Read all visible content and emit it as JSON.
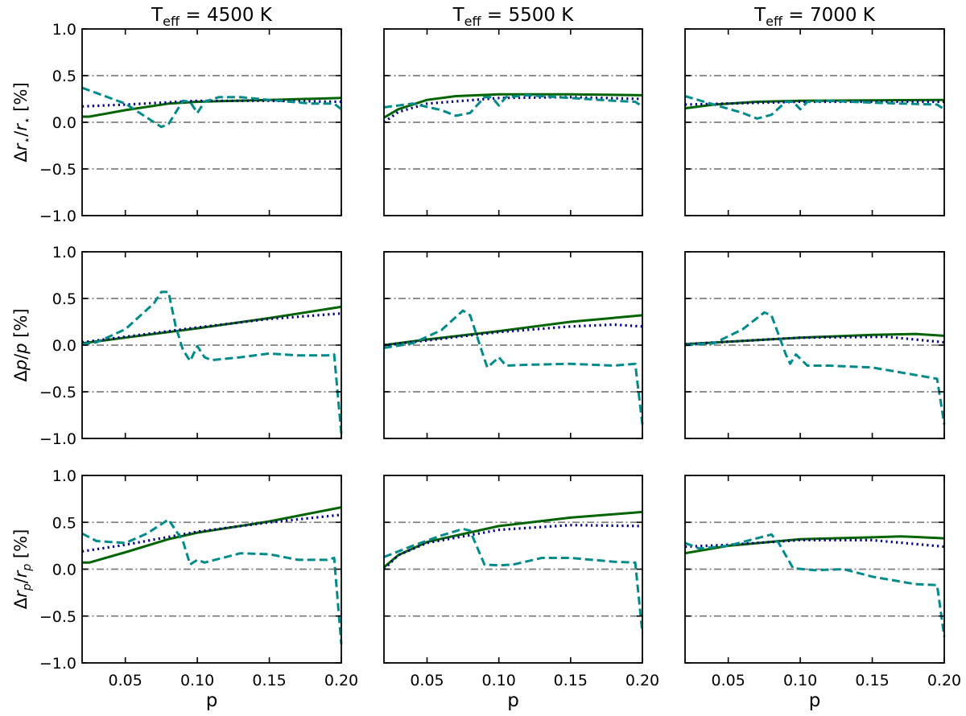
{
  "chart_data": {
    "type": "line",
    "layout": "3x3 grid",
    "xlim": [
      0.02,
      0.2
    ],
    "ylim": [
      -1.0,
      1.0
    ],
    "xticks": [
      "0.05",
      "0.10",
      "0.15",
      "0.20"
    ],
    "yticks": [
      "1.0",
      "0.5",
      "0.0",
      "−0.5",
      "−1.0"
    ],
    "reference_lines": [
      0.5,
      0.0,
      -0.5
    ],
    "xlabel": "p",
    "column_titles": [
      {
        "main": "T",
        "sub": "eff",
        "rest": " = 4500 K"
      },
      {
        "main": "T",
        "sub": "eff",
        "rest": " = 5500 K"
      },
      {
        "main": "T",
        "sub": "eff",
        "rest": " = 7000 K"
      }
    ],
    "row_ylabels": [
      {
        "pre": "Δ",
        "a": "r",
        "as": "⋆",
        "slash": "/",
        "b": "r",
        "bs": "⋆",
        "post": " [%]"
      },
      {
        "pre": "Δ",
        "a": "p",
        "as": "",
        "slash": "/",
        "b": "p",
        "bs": "",
        "post": " [%]"
      },
      {
        "pre": "Δ",
        "a": "r",
        "as": "p",
        "slash": "/",
        "b": "r",
        "bs": "p",
        "post": " [%]"
      }
    ],
    "series_styles": [
      {
        "style": "solid",
        "color": "#006400"
      },
      {
        "style": "dotted",
        "color": "#00008b"
      },
      {
        "style": "dashed",
        "color": "#008b8b"
      }
    ],
    "reference_color": "#808080",
    "panels": [
      {
        "row": 0,
        "col": 0,
        "series": [
          {
            "x": [
              0.02,
              0.025,
              0.05,
              0.08,
              0.1,
              0.15,
              0.2
            ],
            "y": [
              0.06,
              0.06,
              0.13,
              0.2,
              0.22,
              0.24,
              0.26
            ]
          },
          {
            "x": [
              0.02,
              0.05,
              0.1,
              0.15,
              0.2
            ],
            "y": [
              0.17,
              0.19,
              0.23,
              0.23,
              0.22
            ]
          },
          {
            "x": [
              0.02,
              0.05,
              0.07,
              0.075,
              0.08,
              0.09,
              0.095,
              0.1,
              0.105,
              0.115,
              0.13,
              0.15,
              0.18,
              0.195,
              0.2
            ],
            "y": [
              0.37,
              0.2,
              0.0,
              -0.05,
              -0.02,
              0.23,
              0.22,
              0.1,
              0.22,
              0.27,
              0.27,
              0.24,
              0.2,
              0.2,
              0.14
            ]
          }
        ]
      },
      {
        "row": 0,
        "col": 1,
        "series": [
          {
            "x": [
              0.02,
              0.03,
              0.05,
              0.07,
              0.1,
              0.15,
              0.2
            ],
            "y": [
              0.05,
              0.14,
              0.24,
              0.28,
              0.3,
              0.3,
              0.29
            ]
          },
          {
            "x": [
              0.02,
              0.03,
              0.05,
              0.1,
              0.15,
              0.2
            ],
            "y": [
              0.0,
              0.11,
              0.2,
              0.26,
              0.27,
              0.25
            ]
          },
          {
            "x": [
              0.02,
              0.04,
              0.06,
              0.07,
              0.08,
              0.09,
              0.095,
              0.1,
              0.105,
              0.12,
              0.15,
              0.18,
              0.195,
              0.2
            ],
            "y": [
              0.16,
              0.2,
              0.13,
              0.07,
              0.1,
              0.27,
              0.27,
              0.18,
              0.27,
              0.29,
              0.26,
              0.23,
              0.22,
              0.17
            ]
          }
        ]
      },
      {
        "row": 0,
        "col": 2,
        "series": [
          {
            "x": [
              0.02,
              0.04,
              0.07,
              0.1,
              0.2
            ],
            "y": [
              0.15,
              0.19,
              0.22,
              0.23,
              0.24
            ]
          },
          {
            "x": [
              0.02,
              0.1,
              0.2
            ],
            "y": [
              0.19,
              0.22,
              0.22
            ]
          },
          {
            "x": [
              0.02,
              0.04,
              0.06,
              0.07,
              0.08,
              0.09,
              0.095,
              0.1,
              0.105,
              0.12,
              0.15,
              0.195,
              0.2
            ],
            "y": [
              0.28,
              0.19,
              0.1,
              0.04,
              0.08,
              0.22,
              0.22,
              0.14,
              0.22,
              0.23,
              0.21,
              0.19,
              0.14
            ]
          }
        ]
      },
      {
        "row": 1,
        "col": 0,
        "series": [
          {
            "x": [
              0.02,
              0.05,
              0.1,
              0.15,
              0.2
            ],
            "y": [
              0.02,
              0.08,
              0.18,
              0.29,
              0.41
            ]
          },
          {
            "x": [
              0.02,
              0.05,
              0.1,
              0.15,
              0.2
            ],
            "y": [
              0.03,
              0.09,
              0.19,
              0.28,
              0.34
            ]
          },
          {
            "x": [
              0.02,
              0.03,
              0.05,
              0.07,
              0.075,
              0.08,
              0.085,
              0.09,
              0.095,
              0.1,
              0.105,
              0.11,
              0.13,
              0.15,
              0.17,
              0.19,
              0.195,
              0.2
            ],
            "y": [
              0.01,
              0.03,
              0.17,
              0.45,
              0.57,
              0.57,
              0.2,
              -0.05,
              -0.17,
              -0.01,
              -0.13,
              -0.16,
              -0.13,
              -0.09,
              -0.11,
              -0.11,
              -0.1,
              -0.95
            ]
          }
        ]
      },
      {
        "row": 1,
        "col": 1,
        "series": [
          {
            "x": [
              0.02,
              0.05,
              0.1,
              0.15,
              0.2
            ],
            "y": [
              0.0,
              0.06,
              0.15,
              0.25,
              0.32
            ]
          },
          {
            "x": [
              0.02,
              0.05,
              0.1,
              0.15,
              0.18,
              0.2
            ],
            "y": [
              0.0,
              0.05,
              0.14,
              0.2,
              0.22,
              0.2
            ]
          },
          {
            "x": [
              0.02,
              0.04,
              0.06,
              0.075,
              0.08,
              0.09,
              0.092,
              0.1,
              0.105,
              0.12,
              0.15,
              0.18,
              0.195,
              0.2
            ],
            "y": [
              -0.03,
              0.02,
              0.16,
              0.37,
              0.32,
              -0.15,
              -0.24,
              -0.13,
              -0.22,
              -0.21,
              -0.2,
              -0.22,
              -0.2,
              -0.85
            ]
          }
        ]
      },
      {
        "row": 1,
        "col": 2,
        "series": [
          {
            "x": [
              0.02,
              0.1,
              0.15,
              0.18,
              0.2
            ],
            "y": [
              0.01,
              0.08,
              0.11,
              0.12,
              0.1
            ]
          },
          {
            "x": [
              0.02,
              0.1,
              0.16,
              0.2
            ],
            "y": [
              0.01,
              0.08,
              0.09,
              0.03
            ]
          },
          {
            "x": [
              0.02,
              0.04,
              0.06,
              0.075,
              0.08,
              0.09,
              0.093,
              0.097,
              0.105,
              0.12,
              0.15,
              0.18,
              0.195,
              0.2
            ],
            "y": [
              0.0,
              0.02,
              0.17,
              0.35,
              0.32,
              -0.1,
              -0.2,
              -0.1,
              -0.22,
              -0.22,
              -0.24,
              -0.32,
              -0.36,
              -0.85
            ]
          }
        ]
      },
      {
        "row": 2,
        "col": 0,
        "series": [
          {
            "x": [
              0.02,
              0.025,
              0.05,
              0.08,
              0.1,
              0.15,
              0.2
            ],
            "y": [
              0.07,
              0.07,
              0.18,
              0.32,
              0.39,
              0.51,
              0.66
            ]
          },
          {
            "x": [
              0.02,
              0.05,
              0.1,
              0.15,
              0.2
            ],
            "y": [
              0.19,
              0.26,
              0.4,
              0.5,
              0.58
            ]
          },
          {
            "x": [
              0.02,
              0.03,
              0.05,
              0.065,
              0.08,
              0.09,
              0.095,
              0.1,
              0.105,
              0.13,
              0.15,
              0.17,
              0.19,
              0.195,
              0.2
            ],
            "y": [
              0.38,
              0.3,
              0.28,
              0.38,
              0.53,
              0.3,
              0.05,
              0.1,
              0.07,
              0.17,
              0.16,
              0.1,
              0.1,
              0.12,
              -0.8
            ]
          }
        ]
      },
      {
        "row": 2,
        "col": 1,
        "series": [
          {
            "x": [
              0.02,
              0.03,
              0.05,
              0.1,
              0.15,
              0.2
            ],
            "y": [
              0.02,
              0.15,
              0.29,
              0.46,
              0.55,
              0.61
            ]
          },
          {
            "x": [
              0.02,
              0.03,
              0.05,
              0.1,
              0.15,
              0.2
            ],
            "y": [
              0.0,
              0.15,
              0.28,
              0.42,
              0.47,
              0.46
            ]
          },
          {
            "x": [
              0.02,
              0.04,
              0.06,
              0.075,
              0.08,
              0.09,
              0.1,
              0.11,
              0.13,
              0.15,
              0.18,
              0.195,
              0.2
            ],
            "y": [
              0.13,
              0.25,
              0.36,
              0.43,
              0.41,
              0.05,
              0.04,
              0.05,
              0.12,
              0.12,
              0.08,
              0.07,
              -0.68
            ]
          }
        ]
      },
      {
        "row": 2,
        "col": 2,
        "series": [
          {
            "x": [
              0.02,
              0.05,
              0.1,
              0.15,
              0.17,
              0.2
            ],
            "y": [
              0.17,
              0.25,
              0.32,
              0.34,
              0.35,
              0.33
            ]
          },
          {
            "x": [
              0.02,
              0.05,
              0.1,
              0.15,
              0.2
            ],
            "y": [
              0.24,
              0.26,
              0.31,
              0.31,
              0.24
            ]
          },
          {
            "x": [
              0.02,
              0.03,
              0.05,
              0.07,
              0.08,
              0.085,
              0.095,
              0.11,
              0.13,
              0.15,
              0.18,
              0.195,
              0.2
            ],
            "y": [
              0.28,
              0.22,
              0.25,
              0.33,
              0.37,
              0.28,
              0.01,
              -0.01,
              0.0,
              -0.08,
              -0.16,
              -0.17,
              -0.72
            ]
          }
        ]
      }
    ]
  }
}
